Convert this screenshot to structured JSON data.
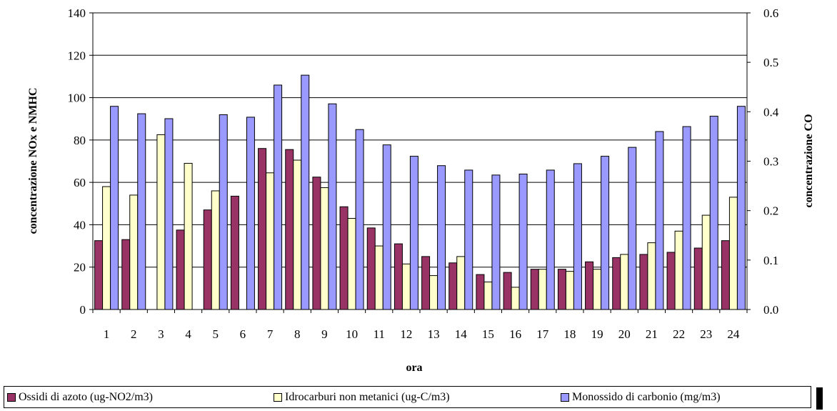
{
  "chart_data": {
    "type": "bar",
    "title": "",
    "xlabel": "ora",
    "ylabel_left": "concentrazione NOx e NMHC",
    "ylabel_right": "concentrazione CO",
    "ylim_left": [
      0,
      140
    ],
    "ylim_right": [
      0.0,
      0.6
    ],
    "yticks_left": [
      "0",
      "20",
      "40",
      "60",
      "80",
      "100",
      "120",
      "140"
    ],
    "yticks_right": [
      "0.0",
      "0.1",
      "0.2",
      "0.3",
      "0.4",
      "0.5",
      "0.6"
    ],
    "grid": true,
    "legend_position": "bottom",
    "categories": [
      "1",
      "2",
      "3",
      "4",
      "5",
      "6",
      "7",
      "8",
      "9",
      "10",
      "11",
      "12",
      "13",
      "14",
      "15",
      "16",
      "17",
      "18",
      "19",
      "20",
      "21",
      "22",
      "23",
      "24"
    ],
    "series": [
      {
        "name": "Ossidi di azoto (ug-NO2/m3)",
        "axis": "left",
        "color": "#993366",
        "values": [
          32.5,
          33,
          0,
          37.5,
          47,
          53.5,
          76,
          75.5,
          62.5,
          48.5,
          38.5,
          31,
          25,
          22,
          16.5,
          17.5,
          19,
          19,
          22.5,
          24.5,
          26,
          27,
          29,
          32.5
        ]
      },
      {
        "name": "Idrocarburi non metanici (ug-C/m3)",
        "axis": "left",
        "color": "#FFFFCC",
        "values": [
          58,
          54,
          82.5,
          69,
          56,
          0,
          64.5,
          70.5,
          57.5,
          43,
          30,
          21.5,
          16,
          25,
          13,
          10.5,
          19,
          18,
          19,
          26,
          31.5,
          37,
          44.5,
          53
        ]
      },
      {
        "name": "Monossido di carbonio (mg/m3)",
        "axis": "right",
        "color": "#9999FF",
        "values": [
          0.411,
          0.396,
          0.386,
          0,
          0.394,
          0.389,
          0.454,
          0.474,
          0.416,
          0.364,
          0.333,
          0.31,
          0.291,
          0.282,
          0.272,
          0.274,
          0.282,
          0.295,
          0.31,
          0.328,
          0.36,
          0.37,
          0.391,
          0.411
        ]
      }
    ]
  }
}
